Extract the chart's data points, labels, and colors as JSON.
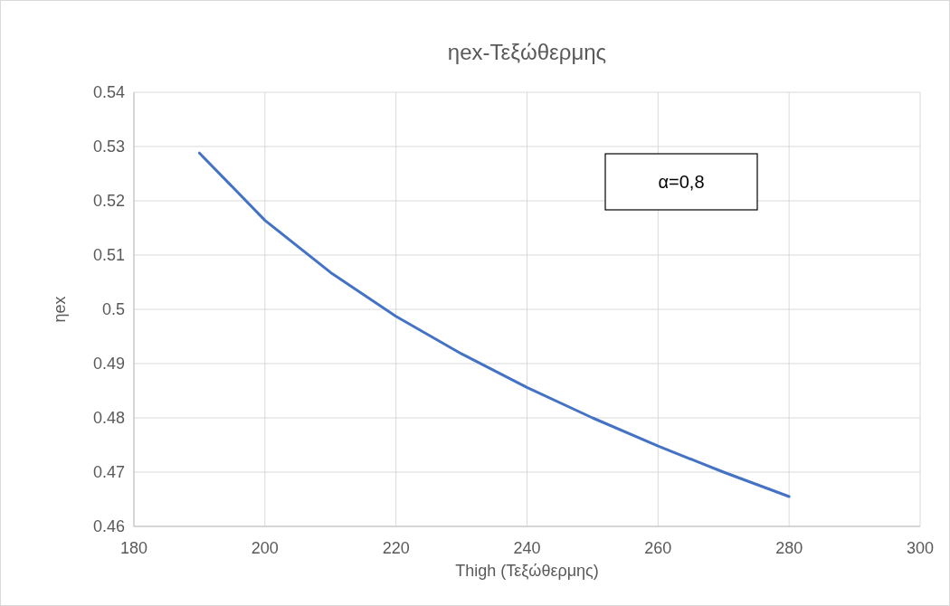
{
  "chart_data": {
    "type": "line",
    "title": "ηex-Τεξώθερμης",
    "xlabel": "Thigh (Τεξώθερμης)",
    "ylabel": "ηex",
    "x": [
      190,
      200,
      210,
      220,
      230,
      240,
      250,
      260,
      270,
      280
    ],
    "series": [
      {
        "color": "#4472c4",
        "values": [
          0.5288,
          0.5164,
          0.5068,
          0.4987,
          0.4918,
          0.4856,
          0.48,
          0.4748,
          0.47,
          0.4655
        ]
      }
    ],
    "xlim": [
      180,
      300
    ],
    "xticks": [
      180,
      200,
      220,
      240,
      260,
      280,
      300
    ],
    "ylim": [
      0.46,
      0.54
    ],
    "yticks": [
      0.46,
      0.47,
      0.48,
      0.49,
      0.5,
      0.51,
      0.52,
      0.53,
      0.54
    ],
    "grid": true,
    "marker": "none",
    "line_style": "solid",
    "annotations": [
      "α=0,8"
    ]
  }
}
